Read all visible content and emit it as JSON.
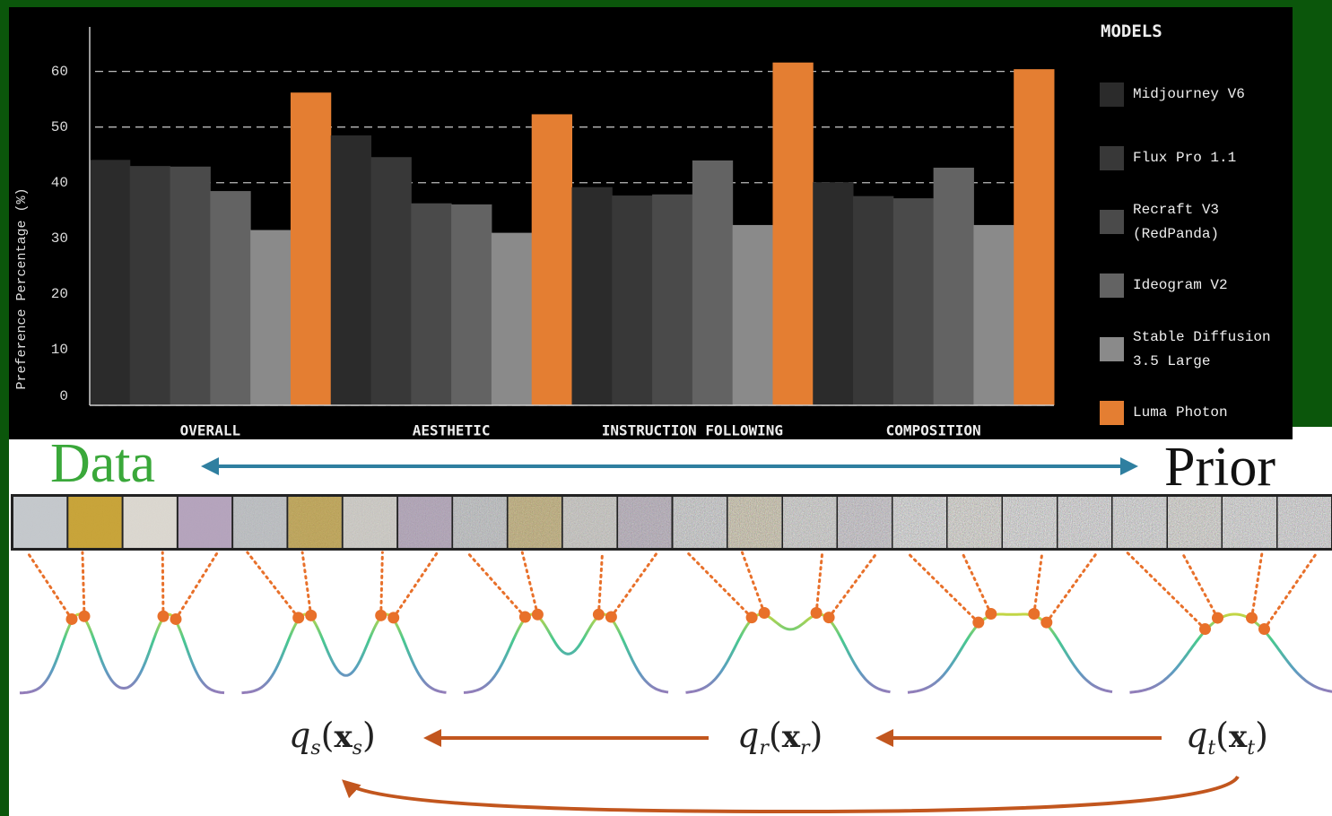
{
  "chart_data": {
    "type": "bar",
    "y_label": "Preference Percentage (%)",
    "categories": [
      "OVERALL",
      "AESTHETIC",
      "INSTRUCTION FOLLOWING",
      "COMPOSITION"
    ],
    "legend_title": "MODELS",
    "series": [
      {
        "name": "Midjourney V6",
        "color": "#2b2b2b",
        "values": [
          44.1,
          48.5,
          39.2,
          40.1
        ]
      },
      {
        "name": "Flux Pro 1.1",
        "color": "#383838",
        "values": [
          43.0,
          44.6,
          37.7,
          37.6
        ]
      },
      {
        "name": "Recraft V3 (RedPanda)",
        "color": "#4a4a4a",
        "values": [
          42.9,
          36.3,
          37.9,
          37.2
        ]
      },
      {
        "name": "Ideogram V2",
        "color": "#636363",
        "values": [
          38.5,
          36.1,
          44.0,
          42.7
        ]
      },
      {
        "name": "Stable Diffusion 3.5 Large",
        "color": "#8a8a8a",
        "values": [
          31.5,
          31.0,
          32.4,
          32.4
        ]
      },
      {
        "name": "Luma Photon",
        "color": "#e47e32",
        "values": [
          56.2,
          52.3,
          61.6,
          60.4
        ]
      }
    ],
    "ylim": [
      0,
      68
    ],
    "yticks": [
      0,
      10,
      20,
      30,
      40,
      50,
      60
    ],
    "grid": true
  },
  "diagram": {
    "left_label": "Data",
    "right_label": "Prior",
    "distributions": [
      {
        "parts": [
          "q",
          "s",
          "(",
          "x",
          "s",
          ")"
        ]
      },
      {
        "parts": [
          "q",
          "r",
          "(",
          "x",
          "r",
          ")"
        ]
      },
      {
        "parts": [
          "q",
          "t",
          "(",
          "x",
          "t",
          ")"
        ]
      }
    ]
  }
}
